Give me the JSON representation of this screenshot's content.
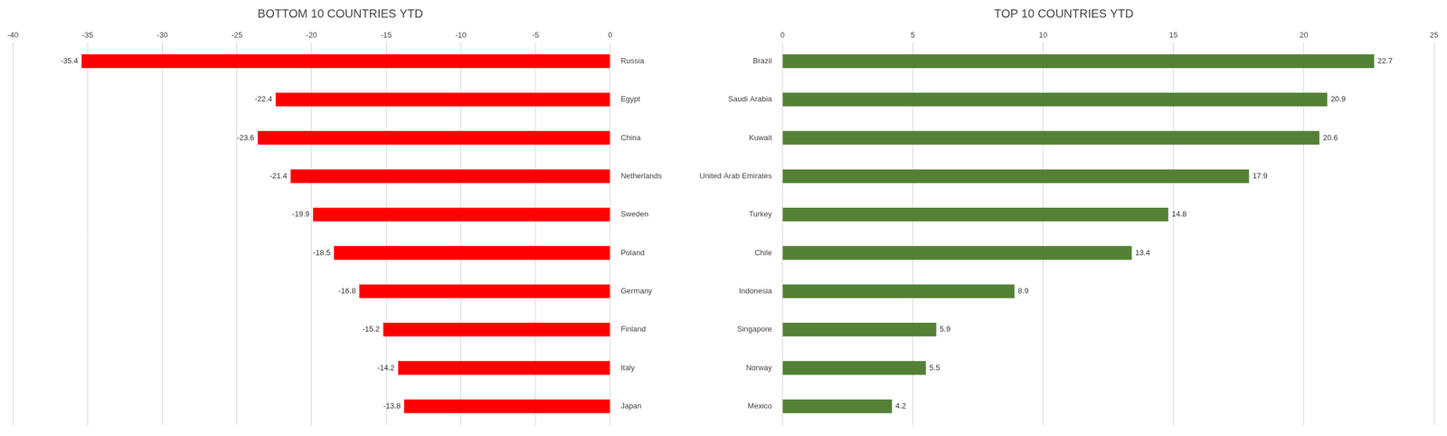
{
  "chart_data": [
    {
      "type": "bar",
      "title": "BOTTOM 10 COUNTRIES YTD",
      "orientation": "horizontal",
      "categories": [
        "Russia",
        "Egypt",
        "China",
        "Netherlands",
        "Sweden",
        "Poland",
        "Germany",
        "Finland",
        "Italy",
        "Japan"
      ],
      "values": [
        -35.4,
        -22.4,
        -23.6,
        -21.4,
        -19.9,
        -18.5,
        -16.8,
        -15.2,
        -14.2,
        -13.8
      ],
      "color": "#ff0000",
      "xlim": [
        -40,
        0
      ],
      "xticks": [
        -40,
        -35,
        -30,
        -25,
        -20,
        -15,
        -10,
        -5,
        0
      ],
      "grid": true,
      "data_labels": true
    },
    {
      "type": "bar",
      "title": "TOP 10 COUNTRIES YTD",
      "orientation": "horizontal",
      "categories": [
        "Brazil",
        "Saudi Arabia",
        "Kuwait",
        "United Arab Emirates",
        "Turkey",
        "Chile",
        "Indonesia",
        "Singapore",
        "Norway",
        "Mexico"
      ],
      "values": [
        22.7,
        20.9,
        20.6,
        17.9,
        14.8,
        13.4,
        8.9,
        5.9,
        5.5,
        4.2
      ],
      "color": "#538135",
      "xlim": [
        0,
        25
      ],
      "xticks": [
        0,
        5,
        10,
        15,
        20,
        25
      ],
      "grid": true,
      "data_labels": true
    }
  ]
}
